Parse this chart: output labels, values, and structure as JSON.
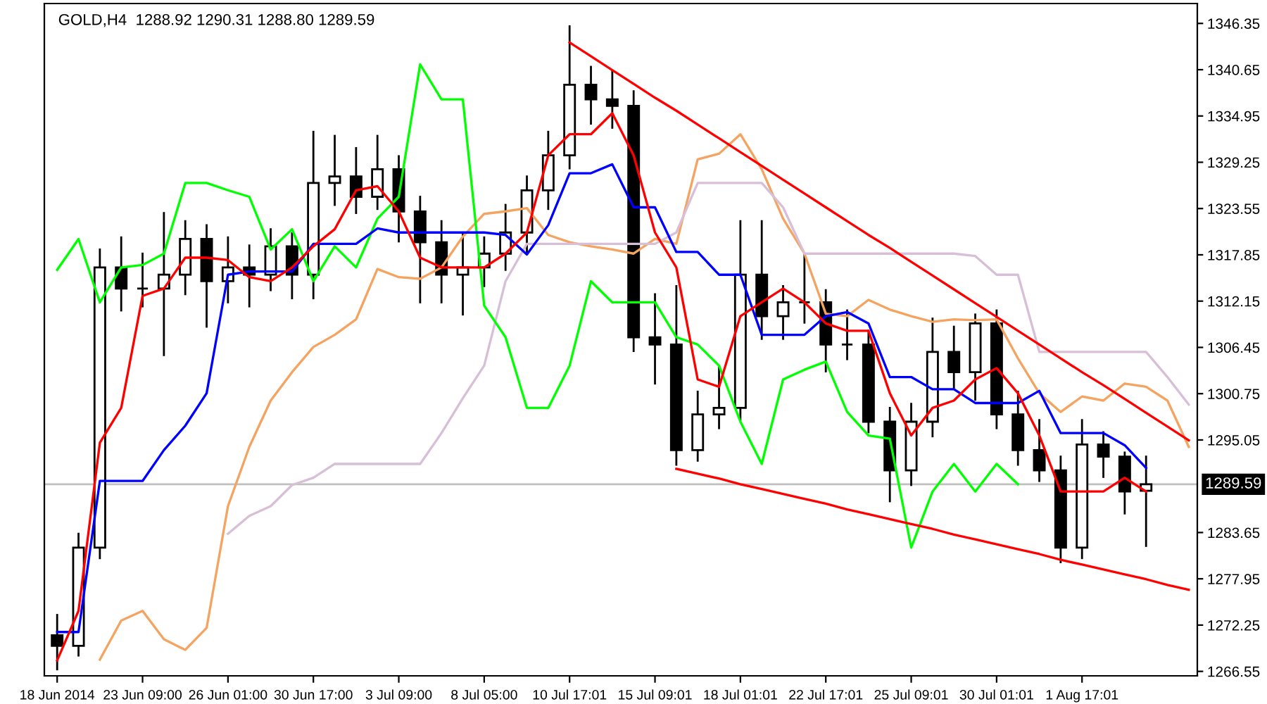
{
  "chart_data": {
    "type": "candlestick",
    "title": "GOLD,H4  1288.92 1290.31 1288.80 1289.59",
    "categories": [
      "18 Jun 2014",
      null,
      null,
      null,
      "23 Jun 09:00",
      null,
      null,
      null,
      "26 Jun 01:00",
      null,
      null,
      null,
      "30 Jun 17:00",
      null,
      null,
      null,
      "3 Jul 09:00",
      null,
      null,
      null,
      "8 Jul 05:00",
      null,
      null,
      null,
      "10 Jul 17:01",
      null,
      null,
      null,
      "15 Jul 09:01",
      null,
      null,
      null,
      "18 Jul 01:01",
      null,
      null,
      null,
      "22 Jul 17:01",
      null,
      null,
      null,
      "25 Jul 09:01",
      null,
      null,
      null,
      "30 Jul 01:01",
      null,
      null,
      null,
      "1 Aug 17:01",
      null,
      null,
      null,
      null,
      null
    ],
    "ohlc": [
      [
        1271.0,
        1273.5,
        1266.8,
        1269.7
      ],
      [
        1269.7,
        1283.5,
        1268.5,
        1281.8
      ],
      [
        1281.8,
        1318.5,
        1280.5,
        1316.3
      ],
      [
        1316.3,
        1320.0,
        1311.0,
        1313.7
      ],
      [
        1313.7,
        1318.0,
        1311.5,
        1313.7
      ],
      [
        1313.7,
        1323.0,
        1305.5,
        1315.4
      ],
      [
        1315.4,
        1322.0,
        1313.0,
        1319.8
      ],
      [
        1319.8,
        1321.5,
        1309.0,
        1314.6
      ],
      [
        1314.6,
        1320.0,
        1312.0,
        1316.3
      ],
      [
        1316.3,
        1319.0,
        1311.5,
        1315.4
      ],
      [
        1315.4,
        1321.0,
        1313.5,
        1318.9
      ],
      [
        1318.9,
        1320.5,
        1312.5,
        1315.4
      ],
      [
        1315.4,
        1333.0,
        1312.5,
        1326.7
      ],
      [
        1326.7,
        1332.5,
        1324.0,
        1327.5
      ],
      [
        1327.5,
        1331.0,
        1323.0,
        1325.0
      ],
      [
        1325.0,
        1332.5,
        1323.5,
        1328.4
      ],
      [
        1328.4,
        1330.0,
        1319.5,
        1323.2
      ],
      [
        1323.2,
        1325.0,
        1312.0,
        1319.4
      ],
      [
        1319.4,
        1322.0,
        1312.0,
        1315.4
      ],
      [
        1315.4,
        1320.5,
        1310.5,
        1316.3
      ],
      [
        1316.3,
        1320.0,
        1314.0,
        1318.0
      ],
      [
        1318.0,
        1324.0,
        1316.0,
        1320.6
      ],
      [
        1320.6,
        1327.5,
        1318.0,
        1325.8
      ],
      [
        1325.8,
        1333.0,
        1323.5,
        1330.1
      ],
      [
        1330.1,
        1346.0,
        1328.5,
        1338.8
      ],
      [
        1338.8,
        1341.0,
        1334.0,
        1337.0
      ],
      [
        1337.0,
        1340.5,
        1333.5,
        1336.2
      ],
      [
        1336.2,
        1338.0,
        1306.0,
        1307.7
      ],
      [
        1307.7,
        1313.0,
        1302.0,
        1306.8
      ],
      [
        1306.8,
        1314.0,
        1292.0,
        1293.8
      ],
      [
        1293.8,
        1301.0,
        1292.5,
        1298.2
      ],
      [
        1298.2,
        1304.0,
        1296.5,
        1299.0
      ],
      [
        1299.0,
        1322.0,
        1297.5,
        1315.4
      ],
      [
        1315.4,
        1322.0,
        1307.5,
        1310.3
      ],
      [
        1310.3,
        1314.0,
        1307.5,
        1312.0
      ],
      [
        1312.0,
        1318.0,
        1309.5,
        1312.0
      ],
      [
        1312.0,
        1313.5,
        1303.5,
        1306.8
      ],
      [
        1306.8,
        1311.0,
        1305.0,
        1306.8
      ],
      [
        1306.8,
        1308.5,
        1296.0,
        1297.3
      ],
      [
        1297.3,
        1299.0,
        1287.5,
        1291.3
      ],
      [
        1291.3,
        1299.5,
        1289.5,
        1297.3
      ],
      [
        1297.3,
        1310.0,
        1295.5,
        1305.9
      ],
      [
        1305.9,
        1309.0,
        1301.5,
        1303.4
      ],
      [
        1303.4,
        1310.5,
        1300.0,
        1309.4
      ],
      [
        1309.4,
        1311.0,
        1296.5,
        1298.2
      ],
      [
        1298.2,
        1301.0,
        1292.0,
        1293.8
      ],
      [
        1293.8,
        1297.5,
        1290.0,
        1291.3
      ],
      [
        1291.3,
        1293.0,
        1280.0,
        1281.8
      ],
      [
        1281.8,
        1297.5,
        1280.5,
        1294.5
      ],
      [
        1294.5,
        1296.0,
        1290.5,
        1293.0
      ],
      [
        1293.0,
        1293.5,
        1286.0,
        1288.7
      ],
      [
        1288.8,
        1293.0,
        1282.0,
        1289.6
      ],
      null,
      null
    ],
    "series": [
      {
        "type": "line",
        "color": "#f4a460",
        "values": [
          null,
          null,
          1268.0,
          1272.8,
          1274.0,
          1270.5,
          1269.2,
          1271.9,
          1286.9,
          1294.2,
          1299.9,
          1303.4,
          1306.5,
          1308.0,
          1309.9,
          1316.1,
          1315.1,
          1314.9,
          1316.3,
          1320.1,
          1322.9,
          1323.2,
          1323.6,
          1320.3,
          1319.4,
          1318.9,
          1318.5,
          1318.0,
          1319.8,
          1319.2,
          1329.6,
          1330.3,
          1332.7,
          1328.4,
          1322.3,
          1318.0,
          1310.6,
          1310.3,
          1312.3,
          1311.1,
          1310.3,
          1309.6,
          1309.9,
          1309.8,
          1309.9,
          1305.1,
          1300.8,
          1298.5,
          1300.4,
          1299.9,
          1302.0,
          1301.6,
          1299.9,
          1294.2
        ]
      },
      {
        "type": "line",
        "color": "#d8bfd8",
        "values": [
          null,
          null,
          null,
          null,
          null,
          null,
          null,
          null,
          1283.5,
          1285.7,
          1286.9,
          1289.5,
          1290.4,
          1292.1,
          1292.1,
          1292.1,
          1292.1,
          1292.1,
          1295.9,
          1300.2,
          1304.2,
          1314.6,
          1319.2,
          1319.2,
          1319.2,
          1319.2,
          1319.2,
          1319.2,
          1319.2,
          1320.6,
          1326.7,
          1326.7,
          1326.7,
          1326.7,
          1323.7,
          1318.0,
          1318.0,
          1318.0,
          1318.0,
          1318.0,
          1318.0,
          1318.0,
          1318.0,
          1317.7,
          1315.4,
          1315.4,
          1305.9,
          1305.9,
          1305.9,
          1305.9,
          1305.9,
          1305.9,
          1302.8,
          1299.4
        ]
      },
      {
        "type": "line",
        "color": "#00ff00",
        "values": [
          1316.0,
          1319.8,
          1312.0,
          1316.3,
          1316.6,
          1318.0,
          1326.7,
          1326.7,
          1325.8,
          1325.0,
          1318.5,
          1321.0,
          1314.6,
          1318.9,
          1316.3,
          1322.3,
          1325.0,
          1341.3,
          1337.0,
          1337.0,
          1311.6,
          1307.7,
          1299.0,
          1299.0,
          1304.2,
          1314.6,
          1312.0,
          1312.0,
          1312.0,
          1307.7,
          1306.8,
          1304.2,
          1297.3,
          1292.1,
          1302.5,
          1303.7,
          1304.7,
          1298.5,
          1295.6,
          1295.2,
          1281.8,
          1288.7,
          1292.1,
          1288.7,
          1292.1,
          1289.6,
          null,
          null,
          null,
          null,
          null,
          null,
          null,
          null
        ]
      },
      {
        "type": "line",
        "color": "#0000ff",
        "values": [
          1271.4,
          1271.4,
          1290.0,
          1290.0,
          1290.0,
          1293.8,
          1296.8,
          1300.8,
          1315.4,
          1315.8,
          1315.8,
          1315.8,
          1319.2,
          1319.2,
          1319.2,
          1321.1,
          1320.6,
          1320.6,
          1320.6,
          1320.6,
          1320.6,
          1320.3,
          1317.9,
          1321.5,
          1327.9,
          1327.9,
          1329.0,
          1323.7,
          1323.7,
          1318.2,
          1318.2,
          1315.4,
          1315.4,
          1308.0,
          1308.0,
          1308.0,
          1310.3,
          1310.8,
          1309.4,
          1302.8,
          1302.8,
          1301.3,
          1301.3,
          1299.6,
          1299.6,
          1299.6,
          1301.1,
          1295.9,
          1295.9,
          1295.9,
          1294.4,
          1291.6,
          null,
          null
        ]
      },
      {
        "type": "line",
        "color": "#ff0000",
        "values": [
          1267.9,
          1274.0,
          1294.7,
          1299.0,
          1312.8,
          1313.7,
          1317.5,
          1317.5,
          1317.2,
          1315.1,
          1314.6,
          1316.3,
          1318.9,
          1321.0,
          1325.8,
          1326.3,
          1323.2,
          1317.5,
          1316.3,
          1316.3,
          1316.3,
          1318.0,
          1320.6,
          1330.1,
          1332.7,
          1332.7,
          1335.3,
          1330.1,
          1320.6,
          1316.3,
          1302.5,
          1301.6,
          1310.3,
          1312.0,
          1313.7,
          1312.0,
          1309.4,
          1308.5,
          1308.5,
          1300.8,
          1295.6,
          1299.0,
          1299.9,
          1302.5,
          1303.9,
          1300.8,
          1295.6,
          1288.7,
          1288.7,
          1288.7,
          1290.4,
          1288.7,
          null,
          null
        ]
      },
      {
        "type": "line",
        "color": "#ff0000",
        "values": [
          null,
          null,
          null,
          null,
          null,
          null,
          null,
          null,
          null,
          null,
          null,
          null,
          null,
          null,
          null,
          null,
          null,
          null,
          null,
          null,
          null,
          null,
          null,
          null,
          1344.0,
          1342.3,
          1340.6,
          1338.9,
          1337.2,
          1335.6,
          1333.9,
          1332.2,
          1330.5,
          1328.8,
          1327.1,
          1325.4,
          1323.7,
          1322.0,
          1320.3,
          1318.7,
          1317.0,
          1315.3,
          1313.6,
          1311.9,
          1310.2,
          1308.5,
          1306.8,
          1305.1,
          1303.4,
          1301.8,
          1300.1,
          1298.4,
          1296.7,
          1295.0
        ]
      },
      {
        "type": "line",
        "color": "#ff0000",
        "values": [
          null,
          null,
          null,
          null,
          null,
          null,
          null,
          null,
          null,
          null,
          null,
          null,
          null,
          null,
          null,
          null,
          null,
          null,
          null,
          null,
          null,
          null,
          null,
          null,
          null,
          null,
          null,
          null,
          null,
          1291.5,
          1290.9,
          1290.3,
          1289.6,
          1289.0,
          1288.4,
          1287.8,
          1287.2,
          1286.5,
          1285.9,
          1285.3,
          1284.7,
          1284.1,
          1283.4,
          1282.8,
          1282.2,
          1281.6,
          1281.0,
          1280.3,
          1279.7,
          1279.1,
          1278.5,
          1277.9,
          1277.2,
          1276.6
        ]
      }
    ],
    "ref_lines": [
      {
        "axis": "y",
        "value": 1289.59,
        "label": "1289.59",
        "color": "#c0c0c0"
      }
    ],
    "ylim": [
      1266.0,
      1348.8
    ],
    "yticks": [
      1346.35,
      1340.65,
      1334.95,
      1329.25,
      1323.55,
      1317.85,
      1312.15,
      1306.45,
      1300.75,
      1295.05,
      1283.65,
      1277.95,
      1272.25,
      1266.55
    ],
    "grid": false,
    "legend": false
  }
}
